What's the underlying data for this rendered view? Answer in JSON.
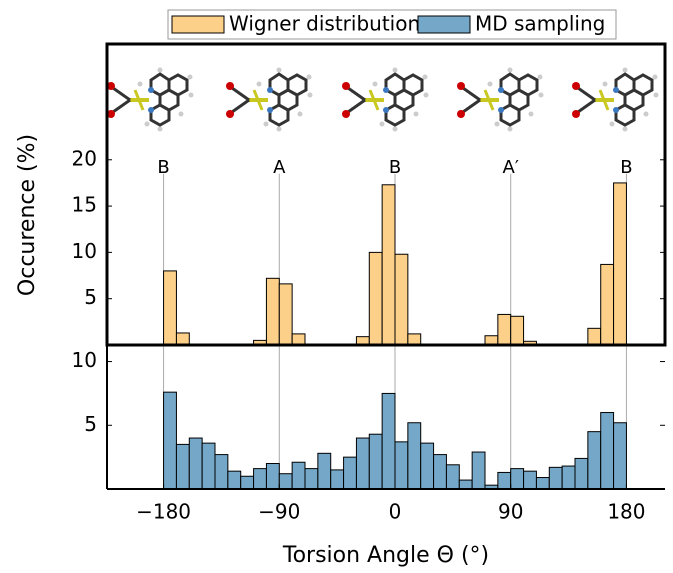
{
  "chart_data": [
    {
      "type": "histogram",
      "ylabel": "Occurence (%)",
      "bins": [
        -180,
        -170,
        -160,
        -150,
        -140,
        -130,
        -120,
        -110,
        -100,
        -90,
        -80,
        -70,
        -60,
        -50,
        -40,
        -30,
        -20,
        -10,
        0,
        10,
        20,
        30,
        40,
        50,
        60,
        70,
        80,
        90,
        100,
        110,
        120,
        130,
        140,
        150,
        160,
        170,
        180
      ],
      "series": [
        {
          "name": "Wigner distribution",
          "color": "#fdd08a",
          "values": [
            8.0,
            1.3,
            0,
            0,
            0,
            0,
            0,
            0.5,
            7.2,
            6.6,
            1.2,
            0,
            0,
            0,
            0,
            0.9,
            10,
            17.3,
            9.8,
            1.2,
            0,
            0,
            0,
            0,
            0,
            1.0,
            3.3,
            3.1,
            0.4,
            0,
            0,
            0,
            0,
            1.8,
            8.7,
            17.5
          ]
        }
      ],
      "annotations": [
        "B",
        "A",
        "B",
        "A′",
        "B"
      ],
      "xlim": [
        -224,
        210
      ],
      "ylim": [
        0,
        32.5
      ],
      "yticks": [
        5,
        10,
        15,
        20
      ]
    },
    {
      "type": "histogram",
      "xlabel": "Torsion Angle Θ (°)",
      "bins": [
        -180,
        -170,
        -160,
        -150,
        -140,
        -130,
        -120,
        -110,
        -100,
        -90,
        -80,
        -70,
        -60,
        -50,
        -40,
        -30,
        -20,
        -10,
        0,
        10,
        20,
        30,
        40,
        50,
        60,
        70,
        80,
        90,
        100,
        110,
        120,
        130,
        140,
        150,
        160,
        170,
        180
      ],
      "series": [
        {
          "name": "MD sampling",
          "color": "#75a8c8",
          "values": [
            7.6,
            3.5,
            4.0,
            3.6,
            2.7,
            1.4,
            1.0,
            1.6,
            2.0,
            1.2,
            2.1,
            1.6,
            2.8,
            1.5,
            2.5,
            4.0,
            4.3,
            7.5,
            3.7,
            5.2,
            3.6,
            2.7,
            1.9,
            0.7,
            2.9,
            0.3,
            1.3,
            1.6,
            1.4,
            0.9,
            1.7,
            1.8,
            2.4,
            4.5,
            6.0,
            5.2
          ]
        }
      ],
      "xlim": [
        -224,
        210
      ],
      "ylim": [
        0,
        11.3
      ],
      "xticks": [
        {
          "value": -180,
          "label": "−180"
        },
        {
          "value": -90,
          "label": "−90"
        },
        0,
        90,
        180
      ],
      "yticks": [
        5,
        10
      ]
    }
  ]
}
